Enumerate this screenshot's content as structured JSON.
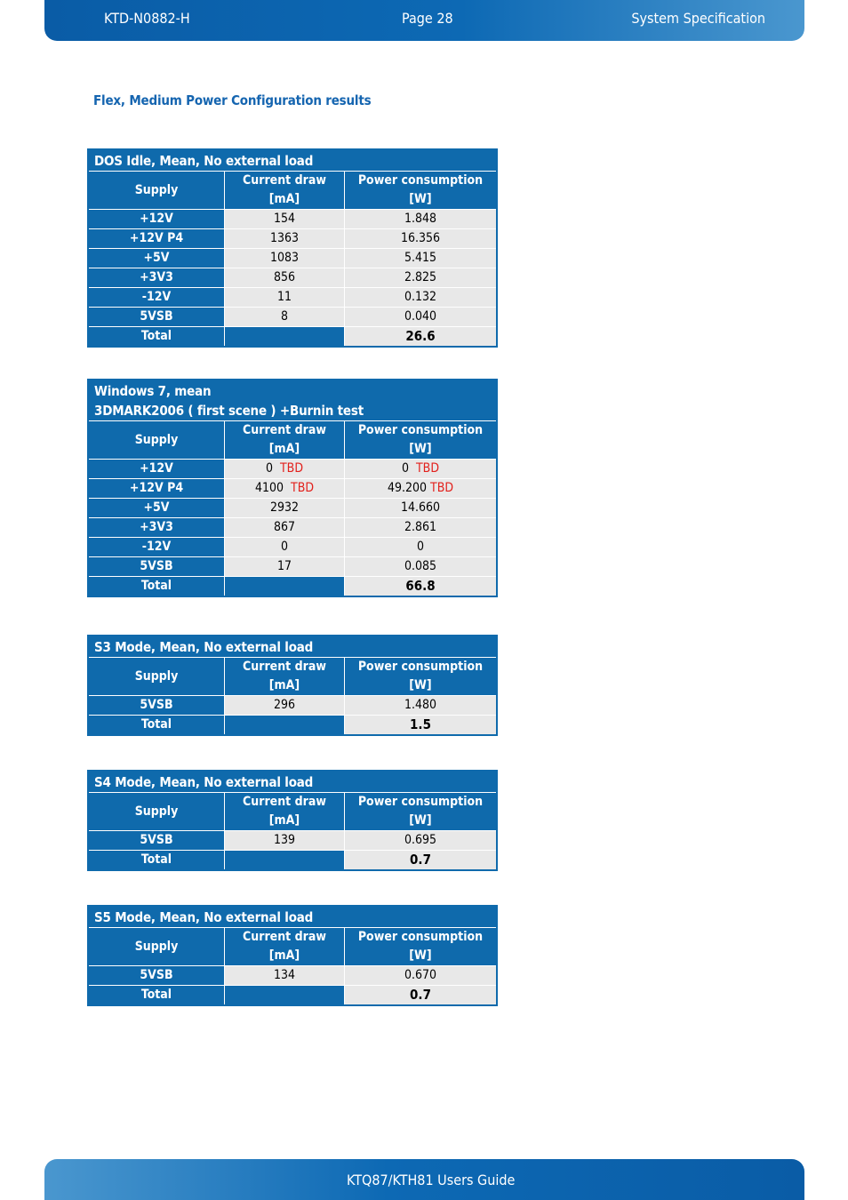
{
  "header": {
    "doc_id": "KTD-N0882-H",
    "page": "Page 28",
    "section": "System Specification"
  },
  "footer": {
    "title": "KTQ87/KTH81 Users Guide"
  },
  "heading": "Flex, Medium Power Configuration results",
  "col_headers": {
    "supply": "Supply",
    "current_l1": "Current draw",
    "current_l2": "[mA]",
    "power_l1": "Power consumption",
    "power_l2": "[W]"
  },
  "total_label": "Total",
  "tables": [
    {
      "title": "DOS Idle, Mean, No external load",
      "rows": [
        {
          "supply": "+12V",
          "current": "154",
          "power": "1.848"
        },
        {
          "supply": "+12V P4",
          "current": "1363",
          "power": "16.356"
        },
        {
          "supply": "+5V",
          "current": "1083",
          "power": "5.415"
        },
        {
          "supply": "+3V3",
          "current": "856",
          "power": "2.825"
        },
        {
          "supply": "-12V",
          "current": "11",
          "power": "0.132"
        },
        {
          "supply": "5VSB",
          "current": "8",
          "power": "0.040"
        }
      ],
      "total": "26.6"
    },
    {
      "title_l1": "Windows 7,  mean",
      "title_l2": "3DMARK2006 ( first scene ) +Burnin test",
      "rows": [
        {
          "supply": "+12V",
          "current": "0",
          "current_note": "TBD",
          "power": "0",
          "power_note": "TBD"
        },
        {
          "supply": "+12V P4",
          "current": "4100",
          "current_note": "TBD",
          "power": "49.200",
          "power_note": "TBD"
        },
        {
          "supply": "+5V",
          "current": "2932",
          "power": "14.660"
        },
        {
          "supply": "+3V3",
          "current": "867",
          "power": "2.861"
        },
        {
          "supply": "-12V",
          "current": "0",
          "power": "0"
        },
        {
          "supply": "5VSB",
          "current": "17",
          "power": "0.085"
        }
      ],
      "total": "66.8"
    },
    {
      "title": "S3 Mode, Mean, No external load",
      "rows": [
        {
          "supply": "5VSB",
          "current": "296",
          "power": "1.480"
        }
      ],
      "total": "1.5"
    },
    {
      "title": "S4 Mode, Mean, No external load",
      "rows": [
        {
          "supply": "5VSB",
          "current": "139",
          "power": "0.695"
        }
      ],
      "total": "0.7"
    },
    {
      "title": "S5 Mode, Mean, No external load",
      "rows": [
        {
          "supply": "5VSB",
          "current": "134",
          "power": "0.670"
        }
      ],
      "total": "0.7"
    }
  ],
  "colors": {
    "table_blue": "#0f6aac",
    "cell_gray": "#e8e8e8",
    "tbd_red": "#e2211c"
  }
}
